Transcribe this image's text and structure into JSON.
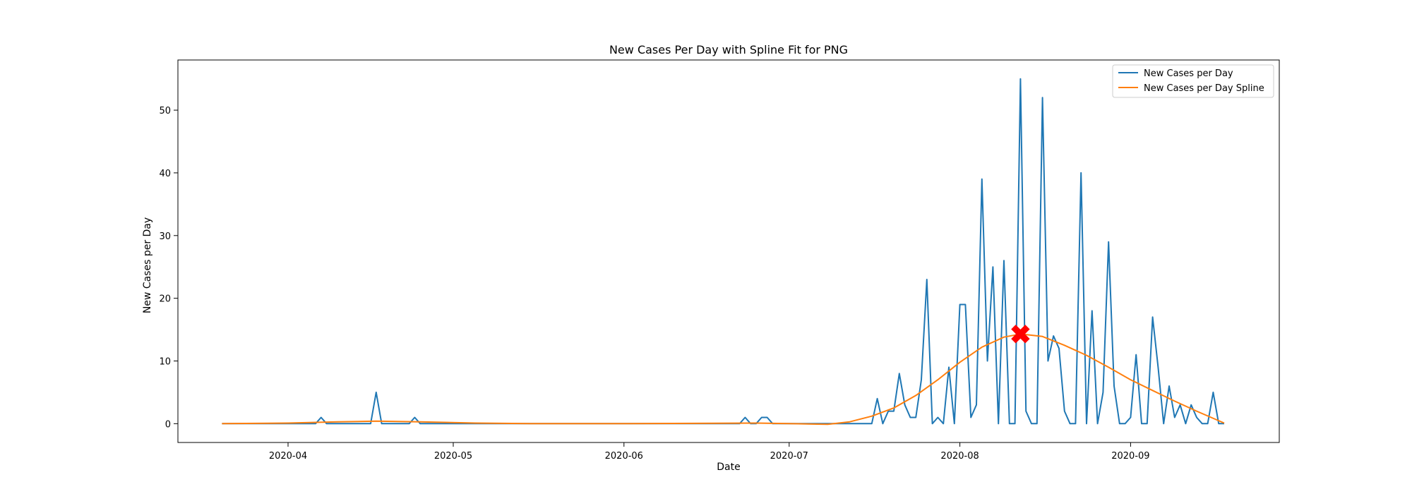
{
  "chart_data": {
    "type": "line",
    "title": "New Cases Per Day with Spline Fit for PNG",
    "xlabel": "Date",
    "ylabel": "New Cases per Day",
    "xlim": [
      "2020-03-12",
      "2020-09-28"
    ],
    "ylim": [
      -3,
      58
    ],
    "x_ticks": [
      "2020-04",
      "2020-05",
      "2020-06",
      "2020-07",
      "2020-08",
      "2020-09"
    ],
    "y_ticks": [
      0,
      10,
      20,
      30,
      40,
      50
    ],
    "grid": false,
    "legend": "top-right",
    "series": [
      {
        "name": "New Cases per Day",
        "color": "#1f77b4",
        "points": [
          [
            "2020-03-20",
            0
          ],
          [
            "2020-04-06",
            0
          ],
          [
            "2020-04-07",
            1
          ],
          [
            "2020-04-08",
            0
          ],
          [
            "2020-04-16",
            0
          ],
          [
            "2020-04-17",
            5
          ],
          [
            "2020-04-18",
            0
          ],
          [
            "2020-04-23",
            0
          ],
          [
            "2020-04-24",
            1
          ],
          [
            "2020-04-25",
            0
          ],
          [
            "2020-05-15",
            0
          ],
          [
            "2020-06-22",
            0
          ],
          [
            "2020-06-23",
            1
          ],
          [
            "2020-06-24",
            0
          ],
          [
            "2020-06-25",
            0
          ],
          [
            "2020-06-26",
            1
          ],
          [
            "2020-06-27",
            1
          ],
          [
            "2020-06-28",
            0
          ],
          [
            "2020-07-16",
            0
          ],
          [
            "2020-07-17",
            4
          ],
          [
            "2020-07-18",
            0
          ],
          [
            "2020-07-19",
            2
          ],
          [
            "2020-07-20",
            2
          ],
          [
            "2020-07-21",
            8
          ],
          [
            "2020-07-22",
            3
          ],
          [
            "2020-07-23",
            1
          ],
          [
            "2020-07-24",
            1
          ],
          [
            "2020-07-25",
            7
          ],
          [
            "2020-07-26",
            23
          ],
          [
            "2020-07-27",
            0
          ],
          [
            "2020-07-28",
            1
          ],
          [
            "2020-07-29",
            0
          ],
          [
            "2020-07-30",
            9
          ],
          [
            "2020-07-31",
            0
          ],
          [
            "2020-08-01",
            19
          ],
          [
            "2020-08-02",
            19
          ],
          [
            "2020-08-03",
            1
          ],
          [
            "2020-08-04",
            3
          ],
          [
            "2020-08-05",
            39
          ],
          [
            "2020-08-06",
            10
          ],
          [
            "2020-08-07",
            25
          ],
          [
            "2020-08-08",
            0
          ],
          [
            "2020-08-09",
            26
          ],
          [
            "2020-08-10",
            0
          ],
          [
            "2020-08-11",
            0
          ],
          [
            "2020-08-12",
            55
          ],
          [
            "2020-08-13",
            2
          ],
          [
            "2020-08-14",
            0
          ],
          [
            "2020-08-15",
            0
          ],
          [
            "2020-08-16",
            52
          ],
          [
            "2020-08-17",
            10
          ],
          [
            "2020-08-18",
            14
          ],
          [
            "2020-08-19",
            12
          ],
          [
            "2020-08-20",
            2
          ],
          [
            "2020-08-21",
            0
          ],
          [
            "2020-08-22",
            0
          ],
          [
            "2020-08-23",
            40
          ],
          [
            "2020-08-24",
            0
          ],
          [
            "2020-08-25",
            18
          ],
          [
            "2020-08-26",
            0
          ],
          [
            "2020-08-27",
            5
          ],
          [
            "2020-08-28",
            29
          ],
          [
            "2020-08-29",
            6
          ],
          [
            "2020-08-30",
            0
          ],
          [
            "2020-08-31",
            0
          ],
          [
            "2020-09-01",
            1
          ],
          [
            "2020-09-02",
            11
          ],
          [
            "2020-09-03",
            0
          ],
          [
            "2020-09-04",
            0
          ],
          [
            "2020-09-05",
            17
          ],
          [
            "2020-09-06",
            9
          ],
          [
            "2020-09-07",
            0
          ],
          [
            "2020-09-08",
            6
          ],
          [
            "2020-09-09",
            1
          ],
          [
            "2020-09-10",
            3
          ],
          [
            "2020-09-11",
            0
          ],
          [
            "2020-09-12",
            3
          ],
          [
            "2020-09-13",
            1
          ],
          [
            "2020-09-14",
            0
          ],
          [
            "2020-09-15",
            0
          ],
          [
            "2020-09-16",
            5
          ],
          [
            "2020-09-17",
            0
          ],
          [
            "2020-09-18",
            0
          ]
        ]
      },
      {
        "name": "New Cases per Day Spline",
        "color": "#ff7f0e",
        "points": [
          [
            "2020-03-20",
            0
          ],
          [
            "2020-04-01",
            0.1
          ],
          [
            "2020-04-10",
            0.3
          ],
          [
            "2020-04-17",
            0.4
          ],
          [
            "2020-04-25",
            0.3
          ],
          [
            "2020-05-05",
            0.1
          ],
          [
            "2020-05-15",
            0
          ],
          [
            "2020-06-01",
            0
          ],
          [
            "2020-06-25",
            0.1
          ],
          [
            "2020-07-01",
            0
          ],
          [
            "2020-07-08",
            -0.1
          ],
          [
            "2020-07-12",
            0.3
          ],
          [
            "2020-07-16",
            1.2
          ],
          [
            "2020-07-20",
            2.5
          ],
          [
            "2020-07-24",
            4.5
          ],
          [
            "2020-07-28",
            7
          ],
          [
            "2020-08-01",
            9.8
          ],
          [
            "2020-08-05",
            12.2
          ],
          [
            "2020-08-09",
            13.8
          ],
          [
            "2020-08-12",
            14.3
          ],
          [
            "2020-08-16",
            13.9
          ],
          [
            "2020-08-20",
            12.5
          ],
          [
            "2020-08-24",
            10.9
          ],
          [
            "2020-08-28",
            9
          ],
          [
            "2020-09-01",
            7
          ],
          [
            "2020-09-05",
            5.3
          ],
          [
            "2020-09-09",
            3.6
          ],
          [
            "2020-09-13",
            2
          ],
          [
            "2020-09-18",
            0.1
          ]
        ]
      }
    ],
    "marker": {
      "x": "2020-08-12",
      "y": 14.3,
      "shape": "x",
      "color": "#ff0000"
    }
  }
}
